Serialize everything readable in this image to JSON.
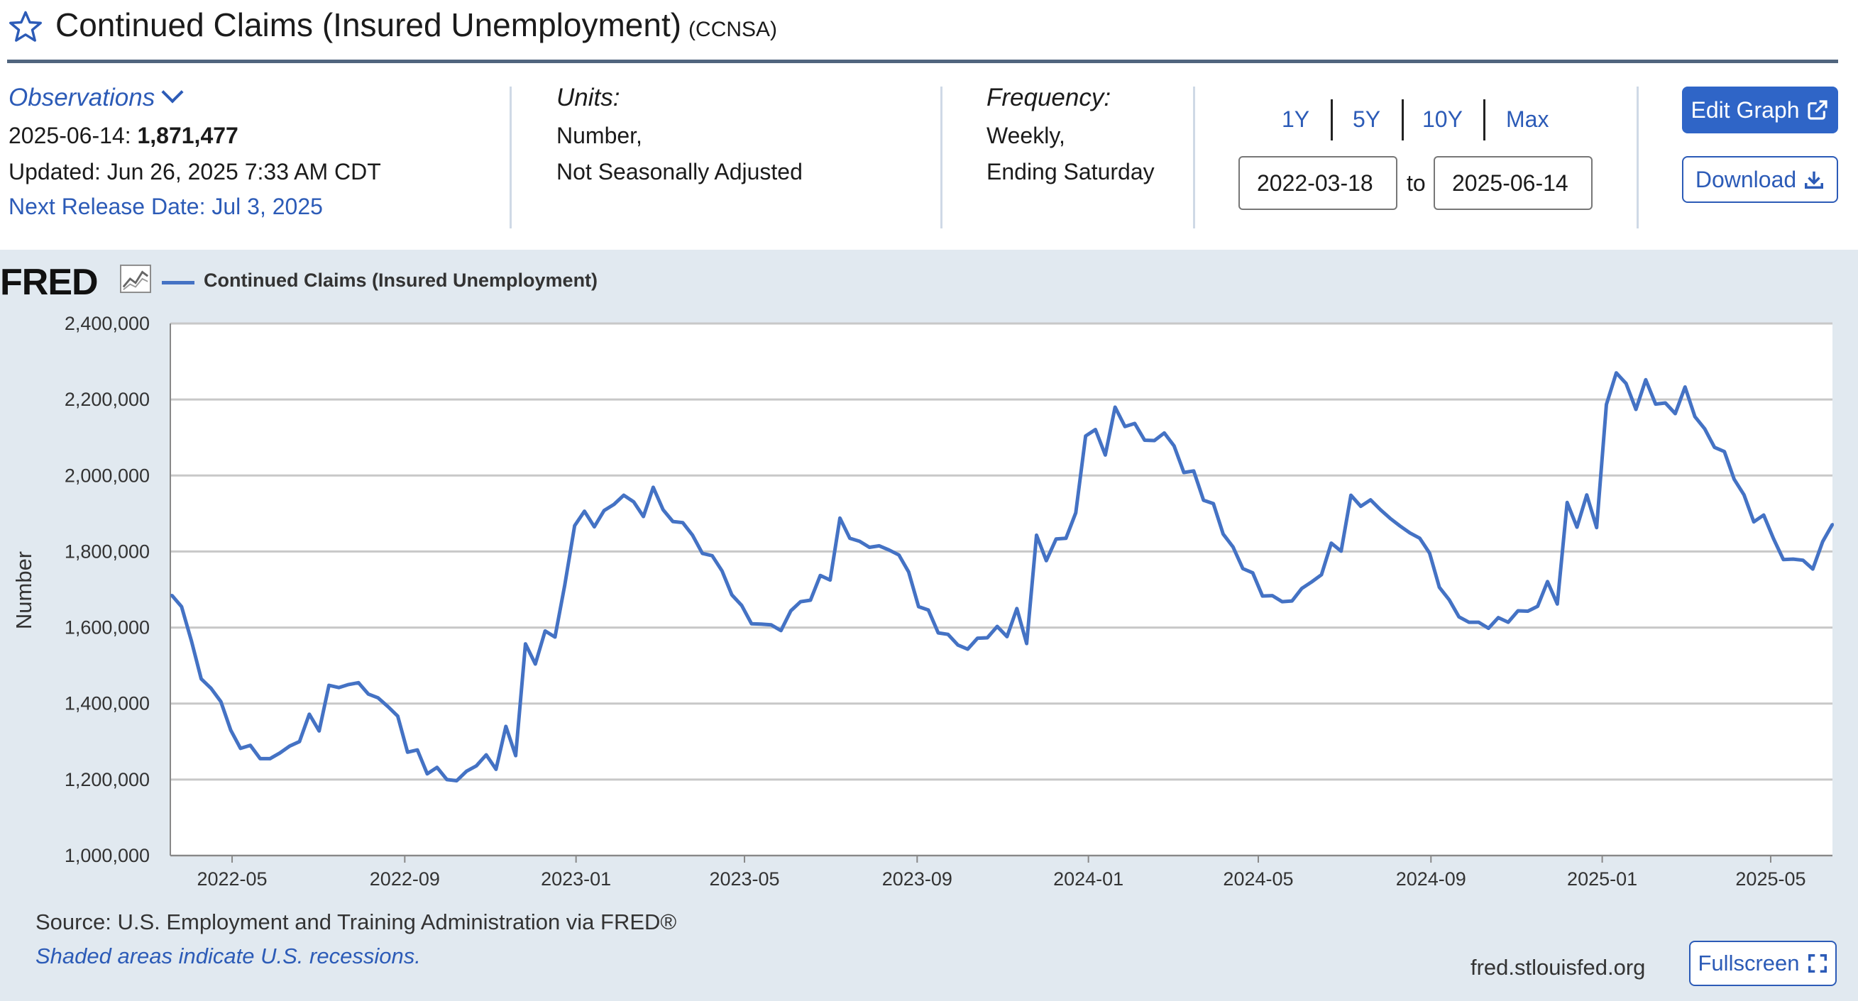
{
  "header": {
    "title": "Continued Claims (Insured Unemployment)",
    "series_id": "(CCNSA)",
    "star_icon": "star-outline-icon"
  },
  "observations": {
    "toggle_label": "Observations",
    "date_prefix": "2025-06-14:",
    "value": "1,871,477",
    "updated": "Updated: Jun 26, 2025 7:33 AM CDT",
    "next_release": "Next Release Date: Jul 3, 2025"
  },
  "units": {
    "label": "Units:",
    "line1": "Number,",
    "line2": "Not Seasonally Adjusted"
  },
  "frequency": {
    "label": "Frequency:",
    "line1": "Weekly,",
    "line2": "Ending Saturday"
  },
  "range": {
    "buttons": [
      "1Y",
      "5Y",
      "10Y",
      "Max"
    ],
    "start": "2022-03-18",
    "to_label": "to",
    "end": "2025-06-14"
  },
  "actions": {
    "edit_graph": "Edit Graph",
    "download": "Download",
    "fullscreen": "Fullscreen"
  },
  "graph": {
    "logo_text": "FRED",
    "logo_icon": "line-chart-icon",
    "legend_label": "Continued Claims (Insured Unemployment)",
    "source": "Source: U.S. Employment and Training Administration via FRED®",
    "recession_note": "Shaded areas indicate U.S. recessions.",
    "url": "fred.stlouisfed.org"
  },
  "colors": {
    "accent": "#2f65c7",
    "series": "#4472c4",
    "panel": "#e1e9f0",
    "rule": "#50657e"
  },
  "chart_data": {
    "type": "line",
    "ylabel": "Number",
    "ylim": [
      1000000,
      2400000
    ],
    "yticks": [
      1000000,
      1200000,
      1400000,
      1600000,
      1800000,
      2000000,
      2200000,
      2400000
    ],
    "ytick_labels": [
      "1,000,000",
      "1,200,000",
      "1,400,000",
      "1,600,000",
      "1,800,000",
      "2,000,000",
      "2,200,000",
      "2,400,000"
    ],
    "xlim": [
      "2022-03-18",
      "2025-06-14"
    ],
    "xticks": [
      "2022-05-01",
      "2022-09-01",
      "2023-01-01",
      "2023-05-01",
      "2023-09-01",
      "2024-01-01",
      "2024-05-01",
      "2024-09-01",
      "2025-01-01",
      "2025-05-01"
    ],
    "xtick_labels": [
      "2022-05",
      "2022-09",
      "2023-01",
      "2023-05",
      "2023-09",
      "2024-01",
      "2024-05",
      "2024-09",
      "2025-01",
      "2025-05"
    ],
    "grid": true,
    "legend": "top-left",
    "series": [
      {
        "name": "Continued Claims (Insured Unemployment)",
        "points": [
          [
            "2022-03-19",
            1685000
          ],
          [
            "2022-03-26",
            1655000
          ],
          [
            "2022-04-02",
            1565000
          ],
          [
            "2022-04-09",
            1465000
          ],
          [
            "2022-04-16",
            1440000
          ],
          [
            "2022-04-23",
            1405000
          ],
          [
            "2022-04-30",
            1330000
          ],
          [
            "2022-05-07",
            1282000
          ],
          [
            "2022-05-14",
            1290000
          ],
          [
            "2022-05-21",
            1255000
          ],
          [
            "2022-05-28",
            1255000
          ],
          [
            "2022-06-04",
            1270000
          ],
          [
            "2022-06-11",
            1288000
          ],
          [
            "2022-06-18",
            1300000
          ],
          [
            "2022-06-25",
            1372000
          ],
          [
            "2022-07-02",
            1328000
          ],
          [
            "2022-07-09",
            1448000
          ],
          [
            "2022-07-16",
            1442000
          ],
          [
            "2022-07-23",
            1450000
          ],
          [
            "2022-07-30",
            1455000
          ],
          [
            "2022-08-06",
            1425000
          ],
          [
            "2022-08-13",
            1415000
          ],
          [
            "2022-08-20",
            1392000
          ],
          [
            "2022-08-27",
            1367000
          ],
          [
            "2022-09-03",
            1272000
          ],
          [
            "2022-09-10",
            1278000
          ],
          [
            "2022-09-17",
            1215000
          ],
          [
            "2022-09-24",
            1232000
          ],
          [
            "2022-10-01",
            1200000
          ],
          [
            "2022-10-08",
            1197000
          ],
          [
            "2022-10-15",
            1222000
          ],
          [
            "2022-10-22",
            1236000
          ],
          [
            "2022-10-29",
            1265000
          ],
          [
            "2022-11-05",
            1227000
          ],
          [
            "2022-11-12",
            1340000
          ],
          [
            "2022-11-19",
            1263000
          ],
          [
            "2022-11-26",
            1557000
          ],
          [
            "2022-12-03",
            1504000
          ],
          [
            "2022-12-10",
            1591000
          ],
          [
            "2022-12-17",
            1575000
          ],
          [
            "2022-12-24",
            1712000
          ],
          [
            "2022-12-31",
            1868000
          ],
          [
            "2023-01-07",
            1906000
          ],
          [
            "2023-01-14",
            1865000
          ],
          [
            "2023-01-21",
            1908000
          ],
          [
            "2023-01-28",
            1924000
          ],
          [
            "2023-02-04",
            1948000
          ],
          [
            "2023-02-11",
            1931000
          ],
          [
            "2023-02-18",
            1892000
          ],
          [
            "2023-02-25",
            1969000
          ],
          [
            "2023-03-04",
            1910000
          ],
          [
            "2023-03-11",
            1879000
          ],
          [
            "2023-03-18",
            1876000
          ],
          [
            "2023-03-25",
            1843000
          ],
          [
            "2023-04-01",
            1795000
          ],
          [
            "2023-04-08",
            1789000
          ],
          [
            "2023-04-15",
            1749000
          ],
          [
            "2023-04-22",
            1686000
          ],
          [
            "2023-04-29",
            1658000
          ],
          [
            "2023-05-06",
            1610000
          ],
          [
            "2023-05-13",
            1609000
          ],
          [
            "2023-05-20",
            1607000
          ],
          [
            "2023-05-27",
            1592000
          ],
          [
            "2023-06-03",
            1644000
          ],
          [
            "2023-06-10",
            1668000
          ],
          [
            "2023-06-17",
            1672000
          ],
          [
            "2023-06-24",
            1737000
          ],
          [
            "2023-07-01",
            1725000
          ],
          [
            "2023-07-08",
            1888000
          ],
          [
            "2023-07-15",
            1835000
          ],
          [
            "2023-07-22",
            1827000
          ],
          [
            "2023-07-29",
            1811000
          ],
          [
            "2023-08-05",
            1815000
          ],
          [
            "2023-08-12",
            1804000
          ],
          [
            "2023-08-19",
            1791000
          ],
          [
            "2023-08-26",
            1746000
          ],
          [
            "2023-09-02",
            1655000
          ],
          [
            "2023-09-09",
            1646000
          ],
          [
            "2023-09-16",
            1586000
          ],
          [
            "2023-09-23",
            1582000
          ],
          [
            "2023-09-30",
            1554000
          ],
          [
            "2023-10-07",
            1543000
          ],
          [
            "2023-10-14",
            1572000
          ],
          [
            "2023-10-21",
            1573000
          ],
          [
            "2023-10-28",
            1603000
          ],
          [
            "2023-11-04",
            1576000
          ],
          [
            "2023-11-11",
            1650000
          ],
          [
            "2023-11-18",
            1558000
          ],
          [
            "2023-11-25",
            1843000
          ],
          [
            "2023-12-02",
            1776000
          ],
          [
            "2023-12-09",
            1833000
          ],
          [
            "2023-12-16",
            1835000
          ],
          [
            "2023-12-23",
            1902000
          ],
          [
            "2023-12-30",
            2104000
          ],
          [
            "2024-01-06",
            2121000
          ],
          [
            "2024-01-13",
            2054000
          ],
          [
            "2024-01-20",
            2180000
          ],
          [
            "2024-01-27",
            2129000
          ],
          [
            "2024-02-03",
            2137000
          ],
          [
            "2024-02-10",
            2093000
          ],
          [
            "2024-02-17",
            2092000
          ],
          [
            "2024-02-24",
            2112000
          ],
          [
            "2024-03-02",
            2078000
          ],
          [
            "2024-03-09",
            2008000
          ],
          [
            "2024-03-16",
            2012000
          ],
          [
            "2024-03-23",
            1935000
          ],
          [
            "2024-03-30",
            1926000
          ],
          [
            "2024-04-06",
            1846000
          ],
          [
            "2024-04-13",
            1812000
          ],
          [
            "2024-04-20",
            1755000
          ],
          [
            "2024-04-27",
            1744000
          ],
          [
            "2024-05-04",
            1683000
          ],
          [
            "2024-05-11",
            1684000
          ],
          [
            "2024-05-18",
            1668000
          ],
          [
            "2024-05-25",
            1670000
          ],
          [
            "2024-06-01",
            1703000
          ],
          [
            "2024-06-08",
            1720000
          ],
          [
            "2024-06-15",
            1739000
          ],
          [
            "2024-06-22",
            1822000
          ],
          [
            "2024-06-29",
            1801000
          ],
          [
            "2024-07-06",
            1948000
          ],
          [
            "2024-07-13",
            1919000
          ],
          [
            "2024-07-20",
            1936000
          ],
          [
            "2024-07-27",
            1910000
          ],
          [
            "2024-08-03",
            1887000
          ],
          [
            "2024-08-10",
            1867000
          ],
          [
            "2024-08-17",
            1849000
          ],
          [
            "2024-08-24",
            1835000
          ],
          [
            "2024-08-31",
            1796000
          ],
          [
            "2024-09-07",
            1706000
          ],
          [
            "2024-09-14",
            1673000
          ],
          [
            "2024-09-21",
            1628000
          ],
          [
            "2024-09-28",
            1614000
          ],
          [
            "2024-10-05",
            1614000
          ],
          [
            "2024-10-12",
            1598000
          ],
          [
            "2024-10-19",
            1626000
          ],
          [
            "2024-10-26",
            1614000
          ],
          [
            "2024-11-02",
            1644000
          ],
          [
            "2024-11-09",
            1643000
          ],
          [
            "2024-11-16",
            1656000
          ],
          [
            "2024-11-23",
            1721000
          ],
          [
            "2024-11-30",
            1662000
          ],
          [
            "2024-12-07",
            1929000
          ],
          [
            "2024-12-14",
            1864000
          ],
          [
            "2024-12-21",
            1949000
          ],
          [
            "2024-12-28",
            1863000
          ],
          [
            "2025-01-04",
            2187000
          ],
          [
            "2025-01-11",
            2270000
          ],
          [
            "2025-01-18",
            2242000
          ],
          [
            "2025-01-25",
            2174000
          ],
          [
            "2025-02-01",
            2252000
          ],
          [
            "2025-02-08",
            2188000
          ],
          [
            "2025-02-15",
            2191000
          ],
          [
            "2025-02-22",
            2163000
          ],
          [
            "2025-03-01",
            2233000
          ],
          [
            "2025-03-08",
            2155000
          ],
          [
            "2025-03-15",
            2123000
          ],
          [
            "2025-03-22",
            2074000
          ],
          [
            "2025-03-29",
            2063000
          ],
          [
            "2025-04-05",
            1990000
          ],
          [
            "2025-04-12",
            1949000
          ],
          [
            "2025-04-19",
            1878000
          ],
          [
            "2025-04-26",
            1896000
          ],
          [
            "2025-05-03",
            1834000
          ],
          [
            "2025-05-10",
            1779000
          ],
          [
            "2025-05-17",
            1780000
          ],
          [
            "2025-05-24",
            1777000
          ],
          [
            "2025-05-31",
            1754000
          ],
          [
            "2025-06-07",
            1826000
          ],
          [
            "2025-06-14",
            1871477
          ]
        ]
      }
    ]
  }
}
